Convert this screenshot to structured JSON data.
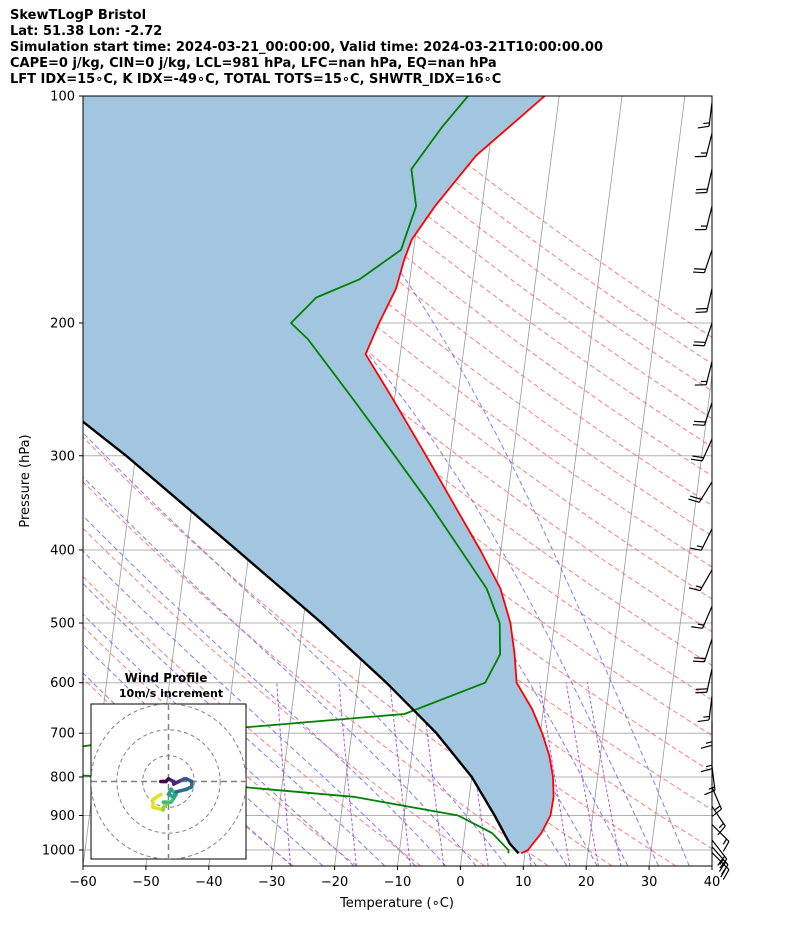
{
  "header": {
    "title": "SkewTLogP Bristol",
    "location": "Lat: 51.38   Lon: -2.72",
    "times": "Simulation start time: 2024-03-21_00:00:00, Valid time: 2024-03-21T10:00:00.00",
    "indices_1": "CAPE=0 j/kg, CIN=0 j/kg, LCL=981 hPa, LFC=nan hPa, EQ=nan hPa",
    "indices_2": "LFT IDX=15∘C, K IDX=-49∘C, TOTAL TOTS=15∘C, SHWTR_IDX=16∘C"
  },
  "chart_data": {
    "type": "line",
    "subtype": "skew-T log-P",
    "xlabel": "Temperature (∘C)",
    "ylabel": "Pressure (hPa)",
    "xlim": [
      -60,
      40
    ],
    "ylim": [
      1050,
      100
    ],
    "y_scale": "log",
    "x_ticks": [
      "−60",
      "−50",
      "−40",
      "−30",
      "−20",
      "−10",
      "0",
      "10",
      "20",
      "30",
      "40"
    ],
    "x_tick_values": [
      -60,
      -50,
      -40,
      -30,
      -20,
      -10,
      0,
      10,
      20,
      30,
      40
    ],
    "y_ticks": [
      "100",
      "200",
      "300",
      "400",
      "500",
      "600",
      "700",
      "800",
      "900",
      "1000"
    ],
    "y_tick_values": [
      100,
      200,
      300,
      400,
      500,
      600,
      700,
      800,
      900,
      1000
    ],
    "grid": true,
    "colors": {
      "temperature": "#ff0000",
      "dewpoint": "#008000",
      "parcel": "#000000",
      "shade": "#a3c6e0",
      "dry_adiabat": "#ff5c5c",
      "moist_adiabat": "#5c5cff",
      "mixing_ratio": "#9933cc",
      "isotherm": "#999999"
    },
    "series": [
      {
        "key": "temperature",
        "points": [
          [
            1010,
            9.4
          ],
          [
            1000,
            10.4
          ],
          [
            950,
            12.2
          ],
          [
            900,
            13.3
          ],
          [
            850,
            13.4
          ],
          [
            800,
            12.9
          ],
          [
            750,
            11.9
          ],
          [
            700,
            10.3
          ],
          [
            650,
            8.2
          ],
          [
            600,
            5.2
          ],
          [
            550,
            4.3
          ],
          [
            500,
            3.0
          ],
          [
            450,
            0.7
          ],
          [
            400,
            -3.3
          ],
          [
            350,
            -8.2
          ],
          [
            300,
            -13.8
          ],
          [
            250,
            -20.6
          ],
          [
            220,
            -25.5
          ],
          [
            200,
            -24.0
          ],
          [
            180,
            -22.0
          ],
          [
            165,
            -21.3
          ],
          [
            155,
            -20.5
          ],
          [
            140,
            -17.5
          ],
          [
            120,
            -12.0
          ],
          [
            100,
            -2.3
          ]
        ]
      },
      {
        "key": "dewpoint",
        "points": [
          [
            1010,
            7.4
          ],
          [
            1000,
            7.3
          ],
          [
            950,
            4.4
          ],
          [
            900,
            -1.4
          ],
          [
            850,
            -18.4
          ],
          [
            820,
            -40.0
          ],
          [
            790,
            -68.0
          ],
          [
            740,
            -68.0
          ],
          [
            700,
            -48.0
          ],
          [
            660,
            -12.0
          ],
          [
            600,
            0.2
          ],
          [
            550,
            2.0
          ],
          [
            500,
            1.3
          ],
          [
            450,
            -1.5
          ],
          [
            400,
            -6.4
          ],
          [
            350,
            -12.0
          ],
          [
            300,
            -18.8
          ],
          [
            250,
            -27.0
          ],
          [
            210,
            -35.0
          ],
          [
            200,
            -38.0
          ],
          [
            185,
            -34.5
          ],
          [
            175,
            -28.0
          ],
          [
            160,
            -22.0
          ],
          [
            140,
            -20.5
          ],
          [
            125,
            -22.0
          ],
          [
            110,
            -18.0
          ],
          [
            100,
            -14.5
          ]
        ]
      },
      {
        "key": "parcel",
        "points": [
          [
            1010,
            9.0
          ],
          [
            981,
            7.4
          ],
          [
            900,
            4.4
          ],
          [
            800,
            0.0
          ],
          [
            700,
            -6.5
          ],
          [
            600,
            -15.5
          ],
          [
            500,
            -27.0
          ],
          [
            400,
            -42.0
          ],
          [
            300,
            -61.5
          ],
          [
            200,
            -91.0
          ],
          [
            150,
            -112.0
          ],
          [
            100,
            -143.0
          ]
        ]
      }
    ],
    "wind_barbs": [
      {
        "p": 1008,
        "u": -8,
        "v": 8
      },
      {
        "p": 990,
        "u": -8,
        "v": 9
      },
      {
        "p": 970,
        "u": -7,
        "v": 9
      },
      {
        "p": 925,
        "u": -6,
        "v": 6
      },
      {
        "p": 875,
        "u": -4,
        "v": 6
      },
      {
        "p": 825,
        "u": -3,
        "v": 7
      },
      {
        "p": 775,
        "u": -1,
        "v": 8
      },
      {
        "p": 725,
        "u": 0,
        "v": 9
      },
      {
        "p": 675,
        "u": 0,
        "v": 7
      },
      {
        "p": 625,
        "u": 1,
        "v": 8
      },
      {
        "p": 575,
        "u": 2,
        "v": 9
      },
      {
        "p": 525,
        "u": 3,
        "v": 9
      },
      {
        "p": 475,
        "u": 3,
        "v": 7
      },
      {
        "p": 425,
        "u": 4,
        "v": 7
      },
      {
        "p": 375,
        "u": 4,
        "v": 8
      },
      {
        "p": 325,
        "u": 5,
        "v": 8
      },
      {
        "p": 285,
        "u": 4,
        "v": 9
      },
      {
        "p": 255,
        "u": 3,
        "v": 9
      },
      {
        "p": 225,
        "u": 2,
        "v": 8
      },
      {
        "p": 200,
        "u": 3,
        "v": 9
      },
      {
        "p": 180,
        "u": 2,
        "v": 9
      },
      {
        "p": 160,
        "u": 3,
        "v": 9
      },
      {
        "p": 140,
        "u": 2,
        "v": 8
      },
      {
        "p": 125,
        "u": 2,
        "v": 9
      },
      {
        "p": 112,
        "u": 2,
        "v": 8
      },
      {
        "p": 102,
        "u": 1,
        "v": 8
      }
    ],
    "hodograph": {
      "title": "Wind Profile",
      "subtitle": "10m/s increment",
      "rings_mps": [
        10,
        20,
        30
      ],
      "range_mps": 30,
      "colormap": [
        "#dfe318",
        "#8bd646",
        "#3fbc73",
        "#20a386",
        "#2d708e",
        "#39568c",
        "#482878",
        "#440154"
      ],
      "points": [
        [
          -3,
          -5
        ],
        [
          -6,
          -7
        ],
        [
          -6,
          -10
        ],
        [
          -2,
          -11
        ],
        [
          -2,
          -10
        ],
        [
          -1,
          -9
        ],
        [
          -2,
          -8
        ],
        [
          1,
          -8
        ],
        [
          3,
          -5
        ],
        [
          1,
          -3
        ],
        [
          0,
          -5
        ],
        [
          2,
          -6
        ],
        [
          3,
          -4
        ],
        [
          7,
          -3
        ],
        [
          9,
          -2
        ],
        [
          9,
          0
        ],
        [
          7,
          1
        ],
        [
          6,
          1
        ],
        [
          4,
          0
        ],
        [
          2,
          -1
        ],
        [
          2,
          0
        ],
        [
          0,
          1
        ],
        [
          -1,
          0
        ],
        [
          -2,
          0
        ],
        [
          -3,
          0
        ]
      ]
    }
  }
}
